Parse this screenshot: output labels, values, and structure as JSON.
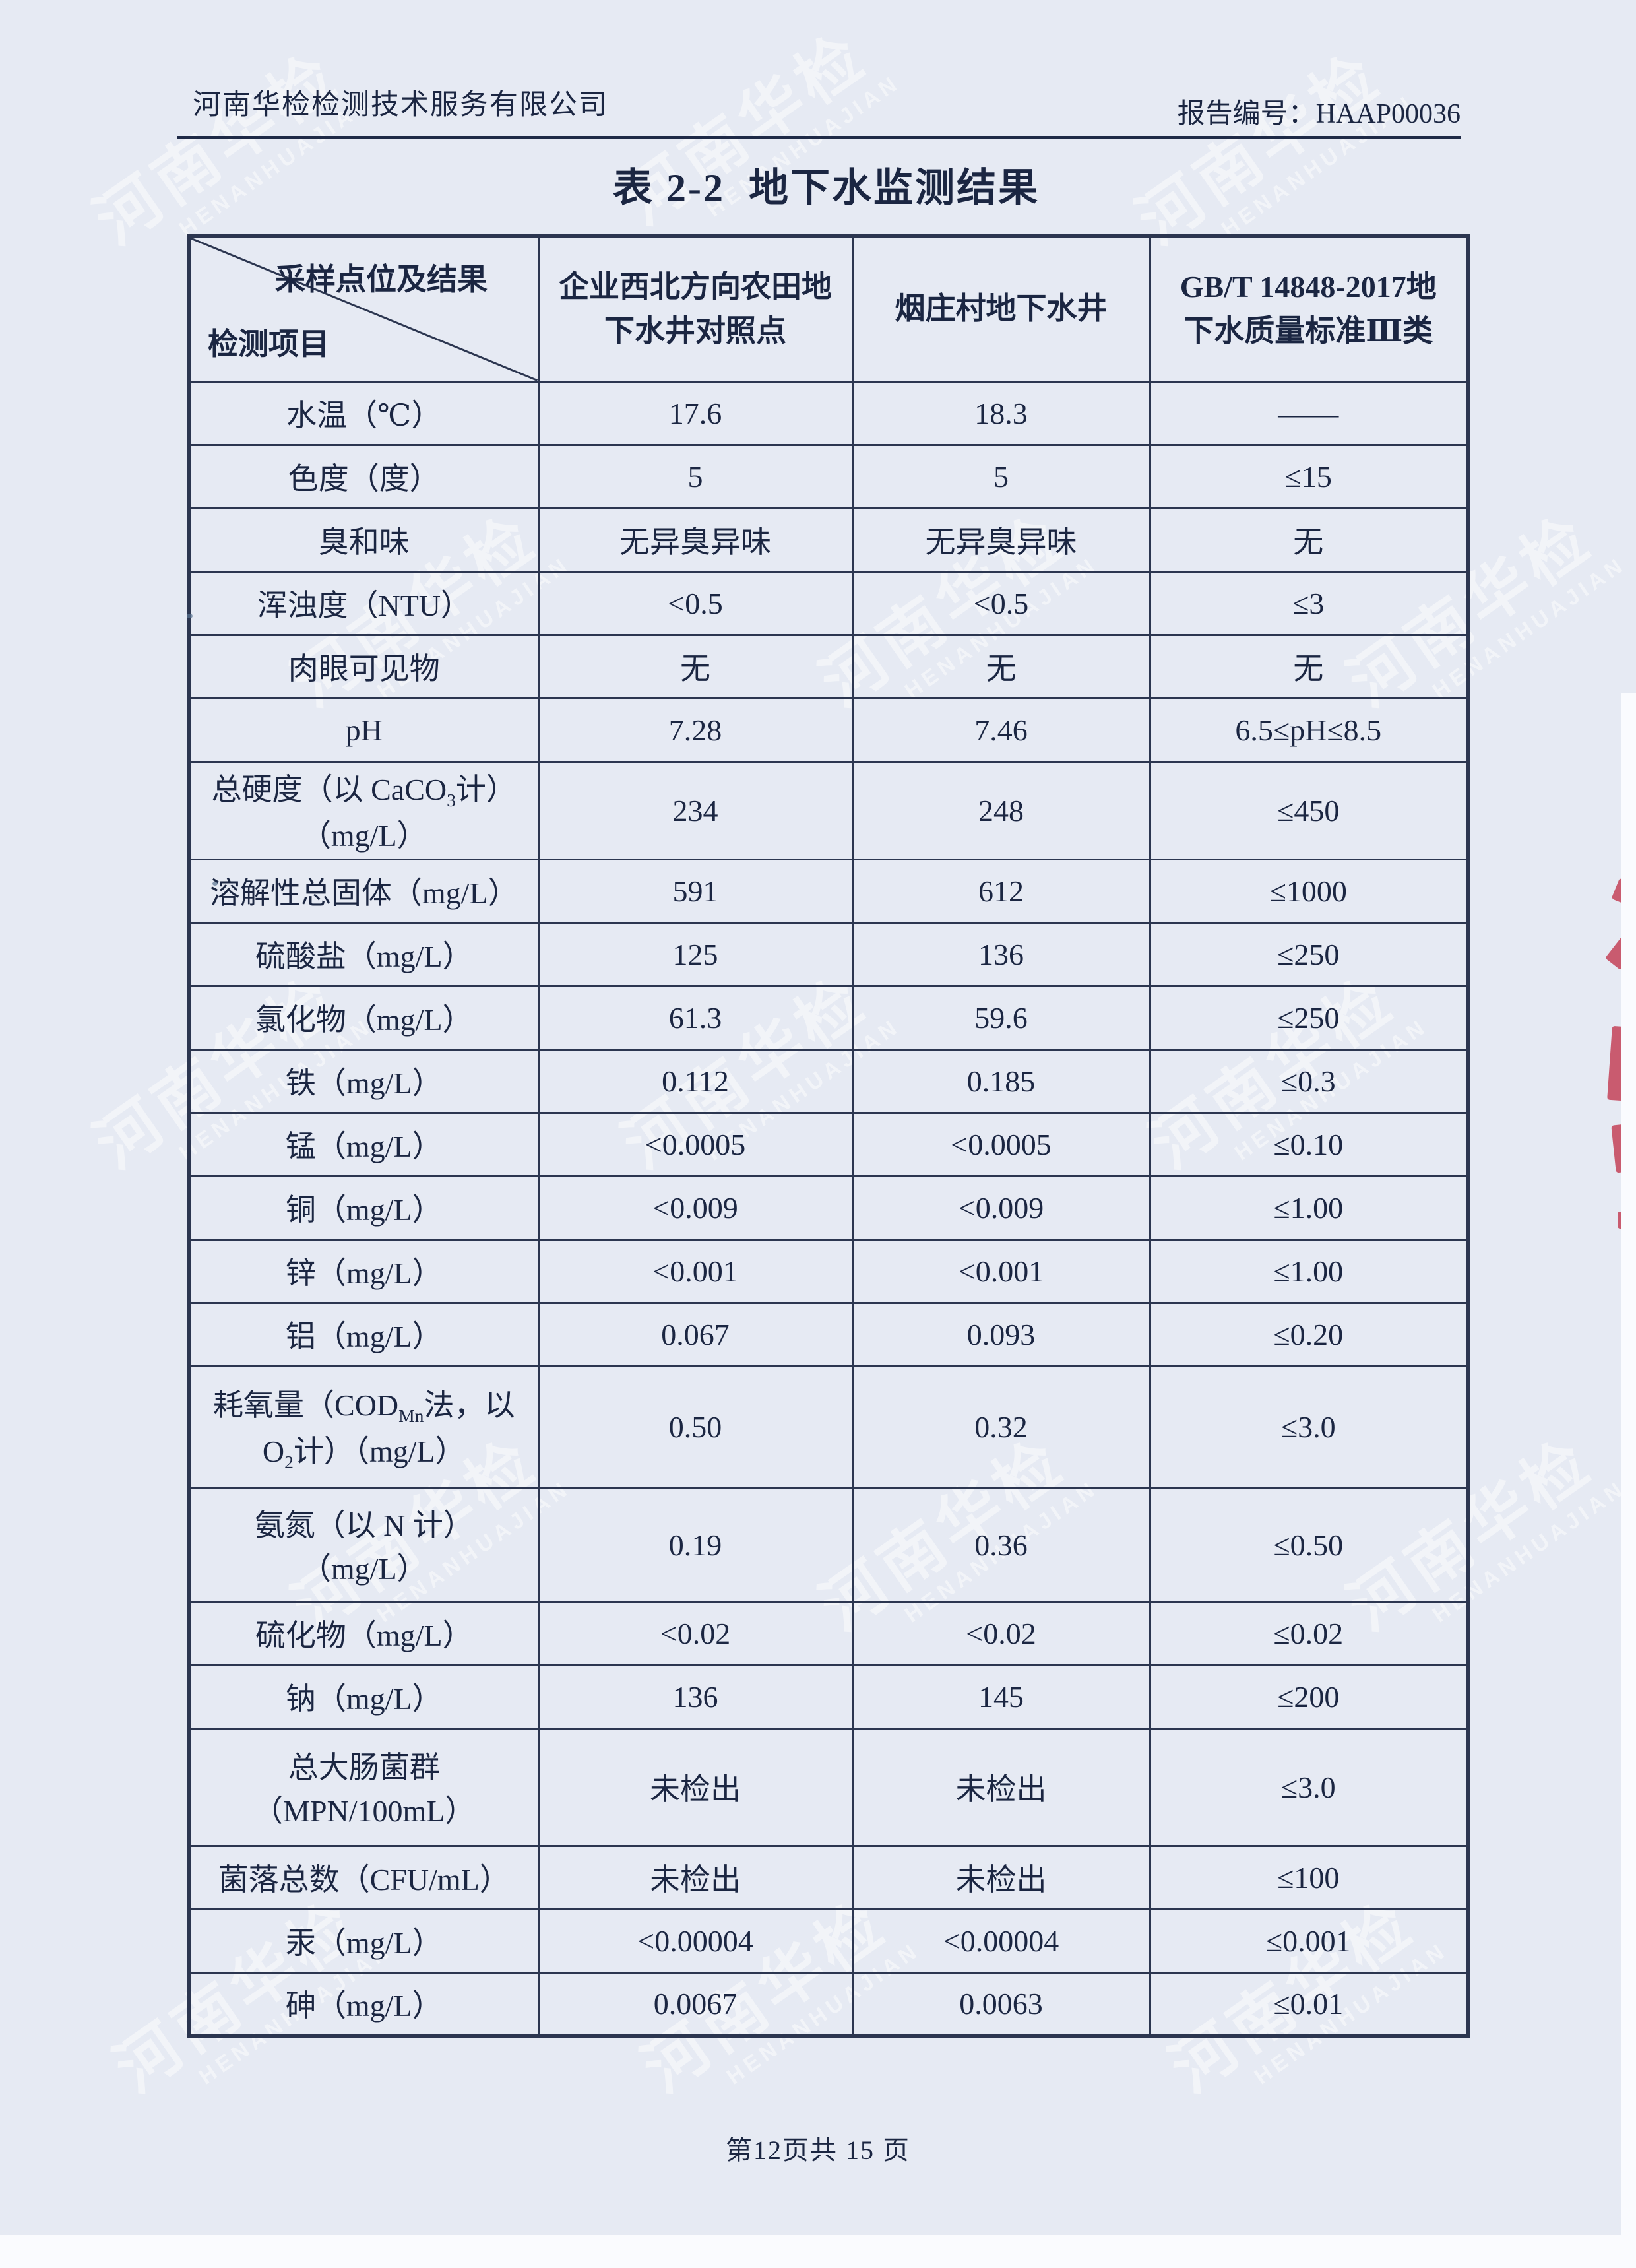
{
  "page": {
    "company": "河南华检检测技术服务有限公司",
    "report_no": "报告编号：HAAP00036",
    "title": "表 2-2  地下水监测结果",
    "footer": "第12页共 15 页"
  },
  "watermark": {
    "cn": "河南华检",
    "en": "HENANHUAJIAN"
  },
  "colors": {
    "paper": "#e6eaf3",
    "ink": "#1b2642",
    "table_border": "#2c3650",
    "stamp_red": "#c23c52"
  },
  "table": {
    "corner": {
      "top_right": "采样点位及结果",
      "bottom_left": "检测项目"
    },
    "columns": [
      "企业西北方向农田地\n下水井对照点",
      "烟庄村地下水井",
      "GB/T 14848-2017地\n下水质量标准Ⅲ类"
    ],
    "rows": [
      {
        "param": "水温（℃）",
        "v1": "17.6",
        "v2": "18.3",
        "std": "——"
      },
      {
        "param": "色度（度）",
        "v1": "5",
        "v2": "5",
        "std": "≤15"
      },
      {
        "param": "臭和味",
        "v1": "无异臭异味",
        "v2": "无异臭异味",
        "std": "无"
      },
      {
        "param": "浑浊度（NTU）",
        "v1": "<0.5",
        "v2": "<0.5",
        "std": "≤3"
      },
      {
        "param": "肉眼可见物",
        "v1": "无",
        "v2": "无",
        "std": "无"
      },
      {
        "param": "pH",
        "v1": "7.28",
        "v2": "7.46",
        "std": "6.5≤pH≤8.5"
      },
      {
        "param": "总硬度（以 CaCO~3~计）\n（mg/L）",
        "v1": "234",
        "v2": "248",
        "std": "≤450"
      },
      {
        "param": "溶解性总固体（mg/L）",
        "v1": "591",
        "v2": "612",
        "std": "≤1000"
      },
      {
        "param": "硫酸盐（mg/L）",
        "v1": "125",
        "v2": "136",
        "std": "≤250"
      },
      {
        "param": "氯化物（mg/L）",
        "v1": "61.3",
        "v2": "59.6",
        "std": "≤250"
      },
      {
        "param": "铁（mg/L）",
        "v1": "0.112",
        "v2": "0.185",
        "std": "≤0.3"
      },
      {
        "param": "锰（mg/L）",
        "v1": "<0.0005",
        "v2": "<0.0005",
        "std": "≤0.10"
      },
      {
        "param": "铜（mg/L）",
        "v1": "<0.009",
        "v2": "<0.009",
        "std": "≤1.00"
      },
      {
        "param": "锌（mg/L）",
        "v1": "<0.001",
        "v2": "<0.001",
        "std": "≤1.00"
      },
      {
        "param": "铝（mg/L）",
        "v1": "0.067",
        "v2": "0.093",
        "std": "≤0.20"
      },
      {
        "param": "耗氧量（COD~Mn~法，以\nO~2~计）（mg/L）",
        "v1": "0.50",
        "v2": "0.32",
        "std": "≤3.0"
      },
      {
        "param": "氨氮（以 N 计）\n（mg/L）",
        "v1": "0.19",
        "v2": "0.36",
        "std": "≤0.50"
      },
      {
        "param": "硫化物（mg/L）",
        "v1": "<0.02",
        "v2": "<0.02",
        "std": "≤0.02"
      },
      {
        "param": "钠（mg/L）",
        "v1": "136",
        "v2": "145",
        "std": "≤200"
      },
      {
        "param": "总大肠菌群\n（MPN/100mL）",
        "v1": "未检出",
        "v2": "未检出",
        "std": "≤3.0"
      },
      {
        "param": "菌落总数（CFU/mL）",
        "v1": "未检出",
        "v2": "未检出",
        "std": "≤100"
      },
      {
        "param": "汞（mg/L）",
        "v1": "<0.00004",
        "v2": "<0.00004",
        "std": "≤0.001"
      },
      {
        "param": "砷（mg/L）",
        "v1": "0.0067",
        "v2": "0.0063",
        "std": "≤0.01"
      }
    ]
  }
}
